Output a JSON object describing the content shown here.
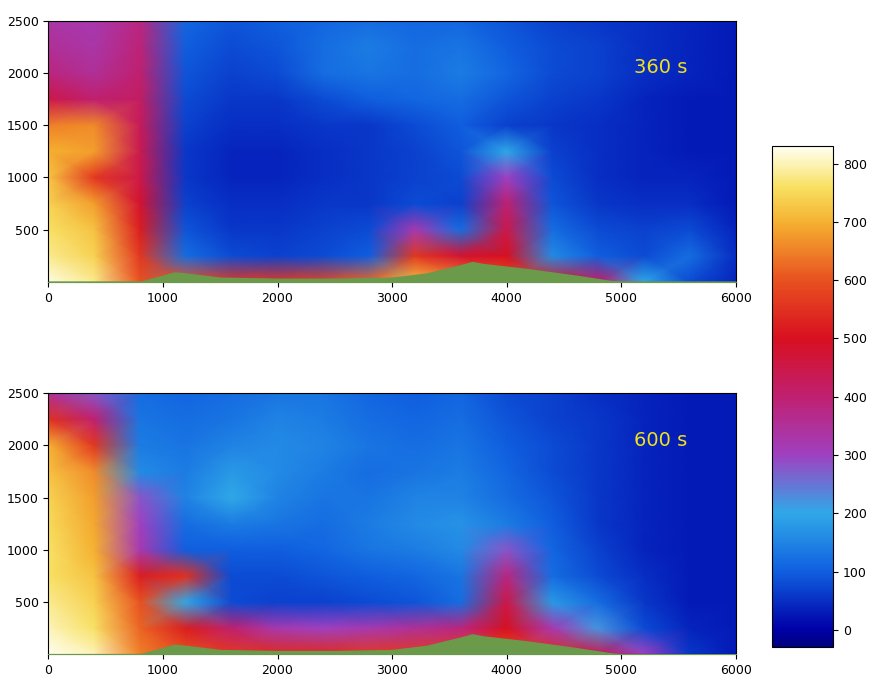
{
  "chart_data": [
    {
      "type": "heatmap",
      "annotation": "360 s",
      "x": [
        0,
        400,
        800,
        1200,
        1600,
        2000,
        2400,
        2800,
        3200,
        3600,
        4000,
        4400,
        4800,
        5200,
        5600,
        6000
      ],
      "y": [
        0,
        250,
        500,
        750,
        1000,
        1250,
        1500,
        1750,
        2000,
        2250,
        2500
      ],
      "cells": [
        [
          820,
          780,
          600,
          600,
          560,
          560,
          580,
          620,
          720,
          660,
          600,
          520,
          420,
          200,
          80,
          40
        ],
        [
          780,
          740,
          560,
          120,
          80,
          70,
          80,
          100,
          560,
          480,
          500,
          160,
          100,
          80,
          120,
          50
        ],
        [
          760,
          720,
          520,
          90,
          60,
          60,
          70,
          80,
          320,
          120,
          450,
          120,
          80,
          70,
          80,
          40
        ],
        [
          740,
          680,
          480,
          70,
          50,
          50,
          60,
          60,
          80,
          70,
          400,
          90,
          60,
          50,
          50,
          30
        ],
        [
          720,
          560,
          450,
          60,
          40,
          40,
          50,
          60,
          70,
          80,
          300,
          80,
          50,
          40,
          40,
          30
        ],
        [
          700,
          680,
          440,
          60,
          40,
          40,
          50,
          60,
          70,
          90,
          200,
          70,
          50,
          40,
          30,
          30
        ],
        [
          650,
          660,
          430,
          70,
          50,
          50,
          60,
          60,
          80,
          100,
          70,
          60,
          50,
          40,
          30,
          30
        ],
        [
          450,
          400,
          420,
          80,
          60,
          60,
          80,
          100,
          110,
          120,
          90,
          70,
          60,
          40,
          30,
          30
        ],
        [
          380,
          350,
          400,
          90,
          70,
          80,
          120,
          130,
          120,
          140,
          110,
          80,
          70,
          50,
          40,
          30
        ],
        [
          350,
          330,
          390,
          100,
          80,
          90,
          120,
          140,
          120,
          130,
          100,
          80,
          70,
          50,
          40,
          30
        ],
        [
          330,
          320,
          380,
          110,
          90,
          100,
          110,
          120,
          110,
          110,
          90,
          70,
          60,
          50,
          40,
          30
        ]
      ],
      "terrain": {
        "x": [
          0,
          800,
          1000,
          1100,
          1200,
          1500,
          2000,
          2500,
          3000,
          3300,
          3600,
          3700,
          3800,
          4200,
          4600,
          4900,
          5000,
          6000
        ],
        "height": [
          0,
          0,
          60,
          90,
          80,
          40,
          30,
          30,
          40,
          80,
          160,
          190,
          170,
          120,
          60,
          10,
          0,
          0
        ]
      },
      "xlim": [
        0,
        6000
      ],
      "ylim": [
        0,
        2500
      ],
      "xticks": [
        0,
        1000,
        2000,
        3000,
        4000,
        5000,
        6000
      ],
      "yticks": [
        500,
        1000,
        1500,
        2000,
        2500
      ],
      "colorbar_range": [
        -30,
        830
      ],
      "colorbar_ticks": [
        0,
        100,
        200,
        300,
        400,
        500,
        600,
        700,
        800
      ]
    },
    {
      "type": "heatmap",
      "annotation": "600 s",
      "x": [
        0,
        400,
        800,
        1200,
        1600,
        2000,
        2400,
        2800,
        3200,
        3600,
        4000,
        4400,
        4800,
        5200,
        5600,
        6000
      ],
      "y": [
        0,
        250,
        500,
        750,
        1000,
        1250,
        1500,
        1750,
        2000,
        2250,
        2500
      ],
      "cells": [
        [
          830,
          800,
          650,
          600,
          560,
          540,
          540,
          560,
          560,
          580,
          600,
          540,
          440,
          300,
          60,
          30
        ],
        [
          800,
          760,
          620,
          520,
          400,
          320,
          300,
          320,
          350,
          380,
          500,
          320,
          220,
          80,
          40,
          30
        ],
        [
          780,
          740,
          600,
          200,
          80,
          70,
          70,
          80,
          90,
          120,
          450,
          180,
          120,
          60,
          30,
          30
        ],
        [
          760,
          720,
          520,
          550,
          80,
          80,
          90,
          100,
          110,
          130,
          380,
          120,
          80,
          50,
          30,
          30
        ],
        [
          760,
          700,
          320,
          100,
          100,
          100,
          110,
          130,
          140,
          160,
          280,
          110,
          70,
          40,
          30,
          30
        ],
        [
          750,
          690,
          300,
          120,
          140,
          130,
          120,
          140,
          160,
          170,
          140,
          100,
          60,
          40,
          30,
          30
        ],
        [
          740,
          680,
          280,
          150,
          200,
          150,
          130,
          130,
          150,
          150,
          120,
          90,
          60,
          40,
          30,
          30
        ],
        [
          720,
          660,
          160,
          140,
          180,
          160,
          140,
          120,
          130,
          140,
          110,
          80,
          60,
          40,
          30,
          30
        ],
        [
          700,
          560,
          140,
          130,
          150,
          160,
          150,
          130,
          120,
          130,
          100,
          80,
          60,
          40,
          30,
          30
        ],
        [
          550,
          400,
          130,
          120,
          130,
          150,
          140,
          120,
          110,
          120,
          90,
          70,
          60,
          40,
          30,
          30
        ],
        [
          350,
          280,
          120,
          110,
          120,
          130,
          130,
          110,
          100,
          110,
          80,
          70,
          50,
          40,
          30,
          30
        ]
      ],
      "terrain": {
        "x": [
          0,
          800,
          1000,
          1100,
          1200,
          1500,
          2000,
          2500,
          3000,
          3300,
          3600,
          3700,
          3800,
          4200,
          4600,
          4900,
          5000,
          6000
        ],
        "height": [
          0,
          0,
          60,
          90,
          80,
          40,
          30,
          30,
          40,
          80,
          160,
          190,
          170,
          120,
          60,
          10,
          0,
          0
        ]
      },
      "xlim": [
        0,
        6000
      ],
      "ylim": [
        0,
        2500
      ],
      "xticks": [
        0,
        1000,
        2000,
        3000,
        4000,
        5000,
        6000
      ],
      "yticks": [
        500,
        1000,
        1500,
        2000,
        2500
      ]
    }
  ]
}
